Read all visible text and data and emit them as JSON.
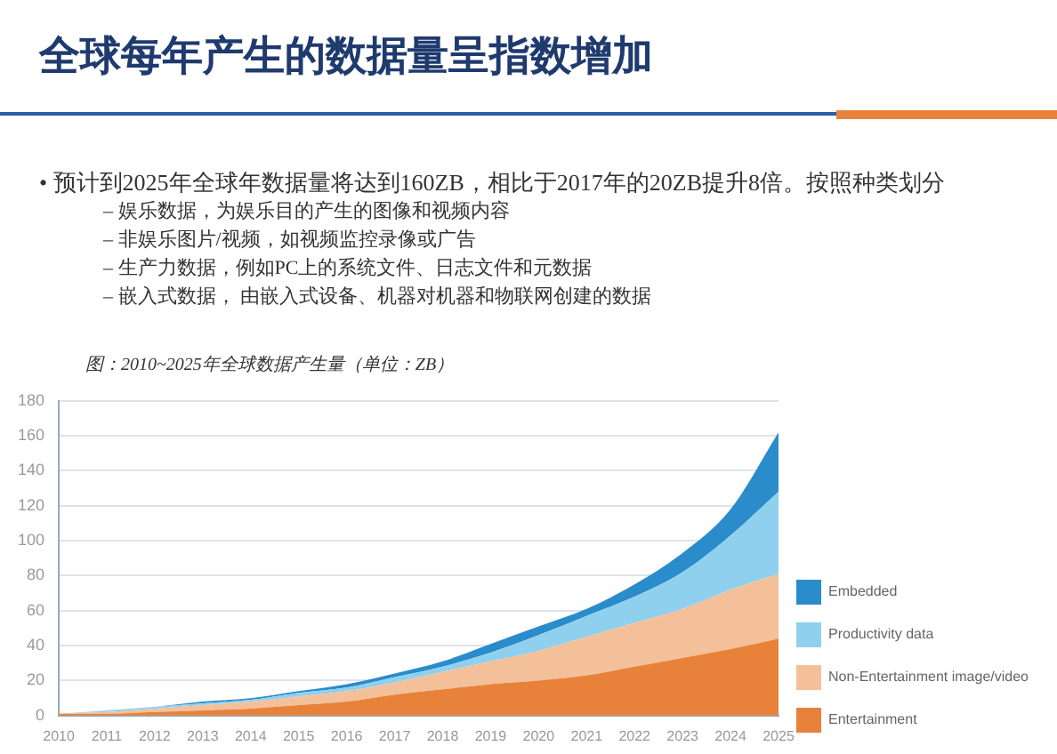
{
  "chart_data": {
    "type": "area",
    "title": "全球每年产生的数据量呈指数增加",
    "subtitle": "图：2010~2025年全球数据产生量（单位：ZB）",
    "annotations": [
      "•  预计到2025年全球年数据量将达到160ZB，相比于2017年的20ZB提升8倍。按照种类划分",
      "–  娱乐数据，为娱乐目的产生的图像和视频内容",
      "–  非娱乐图片/视频，如视频监控录像或广告",
      "–  生产力数据，例如PC上的系统文件、日志文件和元数据",
      "–  嵌入式数据， 由嵌入式设备、机器对机器和物联网创建的数据"
    ],
    "categories": [
      "2010",
      "2011",
      "2012",
      "2013",
      "2014",
      "2015",
      "2016",
      "2017",
      "2018",
      "2019",
      "2020",
      "2021",
      "2022",
      "2023",
      "2024",
      "2025"
    ],
    "stacked": true,
    "ylim": [
      0,
      180
    ],
    "yticks": [
      0,
      20,
      40,
      60,
      80,
      100,
      120,
      140,
      160,
      180
    ],
    "grid": "y",
    "legend": "right",
    "series": [
      {
        "name": "Entertainment",
        "color": "#e8823a",
        "values": [
          1,
          1,
          2,
          3,
          4,
          6,
          8,
          12,
          15,
          18,
          20,
          23,
          28,
          33,
          38,
          44
        ]
      },
      {
        "name": "Non-Entertainment image/video",
        "color": "#f3c09a",
        "values": [
          0,
          1,
          2,
          3,
          4,
          5,
          6,
          7,
          10,
          13,
          17,
          22,
          25,
          28,
          34,
          37
        ]
      },
      {
        "name": "Productivity data",
        "color": "#8fd0ef",
        "values": [
          0,
          1,
          1,
          1,
          1,
          2,
          2,
          3,
          3,
          5,
          9,
          12,
          15,
          21,
          31,
          47
        ]
      },
      {
        "name": "Embedded",
        "color": "#2a8cca",
        "values": [
          0,
          0,
          0,
          1,
          1,
          1,
          2,
          2,
          3,
          5,
          5,
          4,
          7,
          11,
          15,
          34
        ]
      }
    ]
  }
}
